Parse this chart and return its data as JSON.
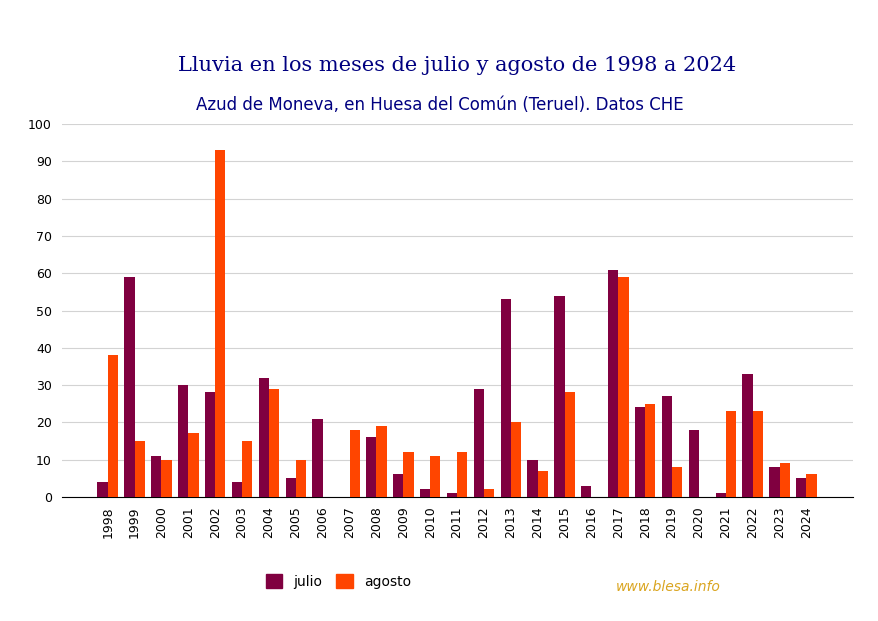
{
  "title": "Lluvia en los meses de julio y agosto de 1998 a 2024",
  "subtitle": "Azud de Moneva, en Huesa del Común (Teruel). Datos CHE",
  "years": [
    1998,
    1999,
    2000,
    2001,
    2002,
    2003,
    2004,
    2005,
    2006,
    2007,
    2008,
    2009,
    2010,
    2011,
    2012,
    2013,
    2014,
    2015,
    2016,
    2017,
    2018,
    2019,
    2020,
    2021,
    2022,
    2023,
    2024
  ],
  "julio": [
    4,
    59,
    11,
    30,
    28,
    4,
    32,
    5,
    21,
    0,
    16,
    6,
    2,
    1,
    29,
    53,
    10,
    54,
    3,
    61,
    24,
    27,
    18,
    1,
    33,
    8,
    5
  ],
  "agosto": [
    38,
    15,
    10,
    17,
    93,
    15,
    29,
    10,
    0,
    18,
    19,
    12,
    11,
    12,
    2,
    20,
    7,
    28,
    0,
    59,
    25,
    8,
    0,
    23,
    23,
    9,
    6
  ],
  "julio_color": "#800040",
  "agosto_color": "#ff4500",
  "ylim": [
    0,
    100
  ],
  "yticks": [
    0,
    10,
    20,
    30,
    40,
    50,
    60,
    70,
    80,
    90,
    100
  ],
  "watermark": "www.blesa.info",
  "watermark_color": "#DAA520",
  "legend_labels": [
    "julio",
    "agosto"
  ],
  "background_color": "#ffffff",
  "title_fontsize": 15,
  "subtitle_fontsize": 12,
  "title_color": "#000080",
  "subtitle_color": "#000080"
}
